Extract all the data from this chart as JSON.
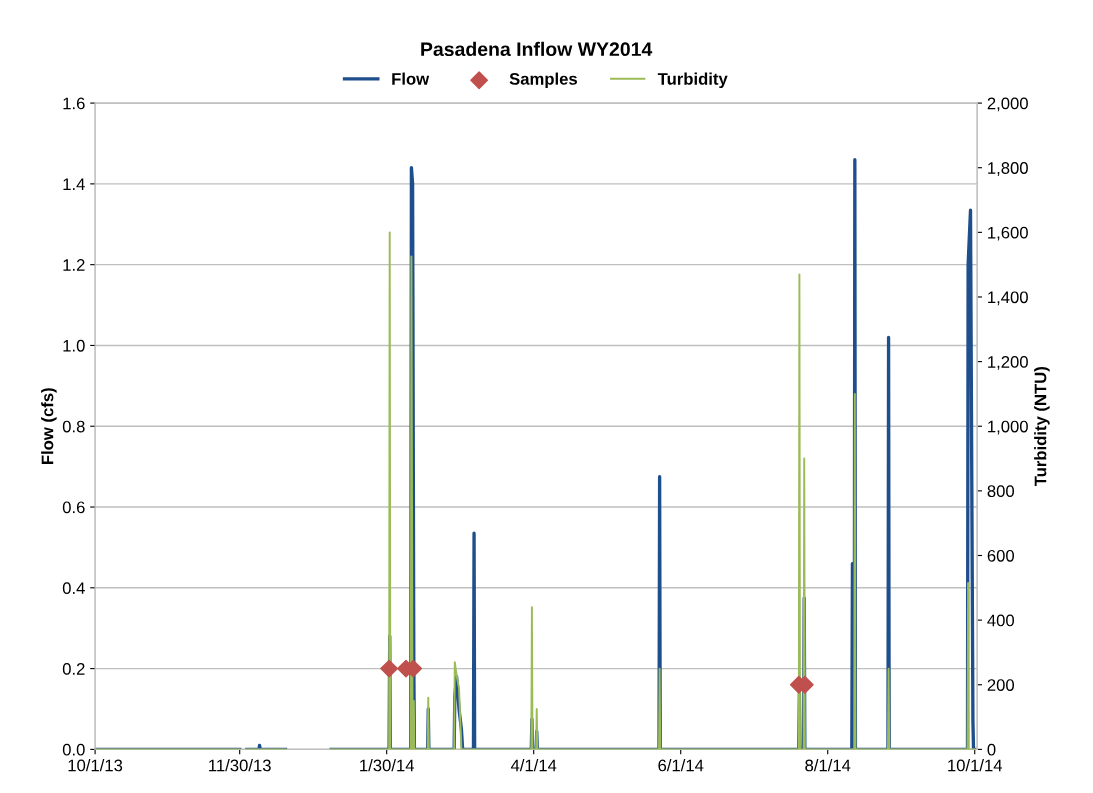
{
  "chart_data": {
    "type": "line",
    "title": "Pasadena Inflow WY2014",
    "ylabel": "Flow (cfs)",
    "y2label": "Turbidity (NTU)",
    "xlim": [
      "2013-10-01",
      "2014-10-02"
    ],
    "xticks": [
      {
        "value": "2013-10-01",
        "label": "10/1/13"
      },
      {
        "value": "2013-11-30",
        "label": "11/30/13"
      },
      {
        "value": "2014-01-30",
        "label": "1/30/14"
      },
      {
        "value": "2014-04-01",
        "label": "4/1/14"
      },
      {
        "value": "2014-06-01",
        "label": "6/1/14"
      },
      {
        "value": "2014-08-01",
        "label": "8/1/14"
      },
      {
        "value": "2014-10-01",
        "label": "10/1/14"
      }
    ],
    "ylim": [
      0,
      1.6
    ],
    "yticks": [
      {
        "value": 0,
        "label": "0.0"
      },
      {
        "value": 0.2,
        "label": "0.2"
      },
      {
        "value": 0.4,
        "label": "0.4"
      },
      {
        "value": 0.6,
        "label": "0.6"
      },
      {
        "value": 0.8,
        "label": "0.8"
      },
      {
        "value": 1.0,
        "label": "1.0"
      },
      {
        "value": 1.2,
        "label": "1.2"
      },
      {
        "value": 1.4,
        "label": "1.4"
      },
      {
        "value": 1.6,
        "label": "1.6"
      }
    ],
    "y2lim": [
      0,
      2000
    ],
    "y2ticks": [
      0,
      200,
      400,
      600,
      800,
      {
        "value": 1000,
        "label": "1,000"
      },
      {
        "value": 1200,
        "label": "1,200"
      },
      {
        "value": 1400,
        "label": "1,400"
      },
      {
        "value": 1600,
        "label": "1,600"
      },
      {
        "value": 1800,
        "label": "1,800"
      },
      {
        "value": 2000,
        "label": "2,000"
      }
    ],
    "grid": "y",
    "legend": "top",
    "series": [
      {
        "name": "Flow",
        "color": "#1f4e8c",
        "x": [
          "2013-10-01",
          "2013-11-30",
          "2013-11-30T12:00",
          "2013-12-03",
          "2013-12-08",
          "2013-12-08T06:00",
          "2013-12-08T12:00",
          "2013-12-19",
          "2013-12-20",
          "2014-01-07",
          "2014-01-31",
          "2014-01-31T06:00",
          "2014-01-31T12:00",
          "2014-02-09",
          "2014-02-09T06:00",
          "2014-02-09T18:00",
          "2014-02-10T06:00",
          "2014-02-10T12:00",
          "2014-02-16",
          "2014-02-16T06:00",
          "2014-02-16T12:00",
          "2014-02-27",
          "2014-02-27T06:00",
          "2014-02-28",
          "2014-03-01",
          "2014-03-02",
          "2014-03-02T12:00",
          "2014-03-07",
          "2014-03-07T06:00",
          "2014-03-07T12:00",
          "2014-03-31",
          "2014-03-31T06:00",
          "2014-03-31T12:00",
          "2014-04-02",
          "2014-04-02T06:00",
          "2014-04-02T12:00",
          "2014-05-23",
          "2014-05-23T06:00",
          "2014-05-23T12:00",
          "2014-07-20",
          "2014-07-20T06:00",
          "2014-07-20T12:00",
          "2014-07-22",
          "2014-07-22T06:00",
          "2014-07-22T12:00",
          "2014-08-11",
          "2014-08-11T06:00",
          "2014-08-11T12:00",
          "2014-08-12",
          "2014-08-12T06:00",
          "2014-08-12T12:00",
          "2014-08-26",
          "2014-08-26T06:00",
          "2014-08-26T12:00",
          "2014-09-28",
          "2014-09-28T06:00",
          "2014-09-29T06:00",
          "2014-09-30T06:00",
          "2014-09-30T12:00",
          "2014-10-01"
        ],
        "values": [
          0,
          0,
          null,
          0,
          0,
          0.01,
          0,
          0,
          null,
          0,
          0,
          0.28,
          0,
          0,
          1.44,
          1.4,
          0.21,
          0,
          0,
          0.1,
          0,
          0,
          0.13,
          0.18,
          0.1,
          0.05,
          0,
          0,
          0.535,
          0,
          0,
          0.075,
          0,
          0,
          0.045,
          0,
          0,
          0.675,
          0,
          0,
          0.14,
          0,
          0,
          0.375,
          0,
          0,
          0.46,
          0,
          0,
          1.46,
          0,
          0,
          1.02,
          0,
          0,
          1.2,
          1.335,
          0.07,
          0,
          0
        ]
      },
      {
        "name": "Samples",
        "type": "scatter",
        "color": "#c0504d",
        "marker": "diamond",
        "x": [
          "2014-01-31",
          "2014-02-07",
          "2014-02-10",
          "2014-07-20",
          "2014-07-22T12:00"
        ],
        "values": [
          0.2,
          0.2,
          0.2,
          0.16,
          0.16
        ]
      },
      {
        "name": "Turbidity",
        "axis": "y2",
        "color": "#9bbb59",
        "x": [
          "2013-10-01",
          "2013-11-30",
          "2013-11-30T12:00",
          "2013-12-03",
          "2013-12-19",
          "2013-12-20",
          "2014-01-07",
          "2014-01-31",
          "2014-01-31T06:00",
          "2014-01-31T12:00",
          "2014-02-09",
          "2014-02-09T06:00",
          "2014-02-09T18:00",
          "2014-02-10T06:00",
          "2014-02-10T12:00",
          "2014-02-16",
          "2014-02-16T06:00",
          "2014-02-16T12:00",
          "2014-02-27",
          "2014-02-27T06:00",
          "2014-02-28",
          "2014-03-01",
          "2014-03-02",
          "2014-03-31",
          "2014-03-31T06:00",
          "2014-03-31T12:00",
          "2014-04-02",
          "2014-04-02T06:00",
          "2014-04-02T12:00",
          "2014-05-23",
          "2014-05-23T06:00",
          "2014-05-23T12:00",
          "2014-07-20",
          "2014-07-20T06:00",
          "2014-07-20T12:00",
          "2014-07-22",
          "2014-07-22T06:00",
          "2014-07-22T12:00",
          "2014-08-12",
          "2014-08-12T06:00",
          "2014-08-12T12:00",
          "2014-08-26",
          "2014-08-26T06:00",
          "2014-08-26T12:00",
          "2014-09-28",
          "2014-09-28T06:00",
          "2014-09-28T12:00",
          "2014-10-01"
        ],
        "values": [
          0,
          0,
          null,
          0,
          0,
          null,
          0,
          0,
          1600,
          0,
          0,
          1525,
          0,
          150,
          0,
          0,
          160,
          0,
          0,
          270,
          230,
          190,
          0,
          0,
          440,
          0,
          0,
          125,
          0,
          0,
          250,
          0,
          0,
          1470,
          0,
          0,
          900,
          0,
          0,
          1100,
          0,
          0,
          250,
          0,
          0,
          515,
          0,
          0
        ]
      }
    ]
  }
}
